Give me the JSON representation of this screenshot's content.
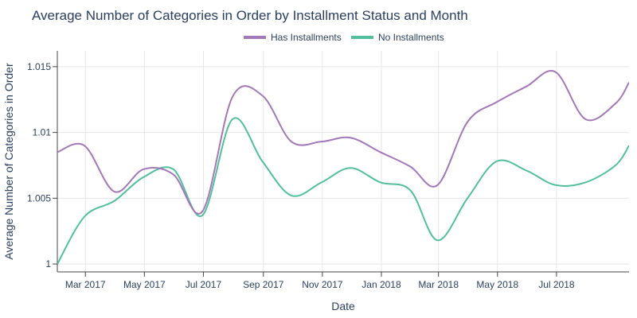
{
  "chart_data": {
    "type": "line",
    "title": "Average Number of Categories in Order by Installment Status and Month",
    "xlabel": "Date",
    "ylabel": "Average Number of Categories in Order",
    "x_tick_labels": [
      "Mar 2017",
      "May 2017",
      "Jul 2017",
      "Sep 2017",
      "Nov 2017",
      "Jan 2018",
      "Mar 2018",
      "May 2018",
      "Jul 2018"
    ],
    "y_tick_labels": [
      "1",
      "1.005",
      "1.01",
      "1.015"
    ],
    "y_ticks": [
      1,
      1.005,
      1.01,
      1.015
    ],
    "ylim": [
      0.9994,
      1.0162
    ],
    "xlim": [
      "2017-01-31",
      "2018-09-14"
    ],
    "x": [
      "2017-01-31",
      "2017-02-28",
      "2017-03-31",
      "2017-04-30",
      "2017-05-31",
      "2017-06-30",
      "2017-07-31",
      "2017-08-31",
      "2017-09-30",
      "2017-10-31",
      "2017-11-30",
      "2017-12-31",
      "2018-01-31",
      "2018-02-28",
      "2018-03-31",
      "2018-04-30",
      "2018-05-31",
      "2018-06-30",
      "2018-07-31",
      "2018-08-31",
      "2018-09-14"
    ],
    "grid": true,
    "legend_position": "top-center",
    "series": [
      {
        "name": "Has Installments",
        "color": "#a478b8",
        "values": [
          1.0085,
          1.009,
          1.0055,
          1.0072,
          1.0068,
          1.004,
          1.0127,
          1.0128,
          1.0093,
          1.0093,
          1.0096,
          1.0085,
          1.0074,
          1.006,
          1.0108,
          1.0123,
          1.0135,
          1.0146,
          1.011,
          1.0122,
          1.0138
        ]
      },
      {
        "name": "No Installments",
        "color": "#52bf9c",
        "values": [
          1.0,
          1.0036,
          1.0048,
          1.0066,
          1.0072,
          1.0037,
          1.011,
          1.0078,
          1.0052,
          1.0062,
          1.0073,
          1.0062,
          1.0056,
          1.0018,
          1.005,
          1.0078,
          1.0071,
          1.006,
          1.0062,
          1.0075,
          1.009
        ]
      }
    ]
  }
}
